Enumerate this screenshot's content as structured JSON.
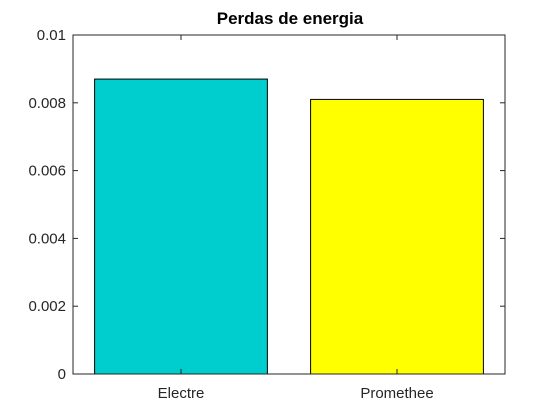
{
  "chart_data": {
    "type": "bar",
    "title": "Perdas de energia",
    "categories": [
      "Electre",
      "Promethee"
    ],
    "values": [
      0.0087,
      0.0081
    ],
    "colors": [
      "#00cdcd",
      "#ffff00"
    ],
    "ylim": [
      0,
      0.01
    ],
    "yticks": [
      0,
      0.002,
      0.004,
      0.006,
      0.008,
      0.01
    ],
    "ytick_labels": [
      "0",
      "0.002",
      "0.004",
      "0.006",
      "0.008",
      "0.01"
    ],
    "xlabel": "",
    "ylabel": "",
    "grid": false,
    "legend": "none"
  }
}
